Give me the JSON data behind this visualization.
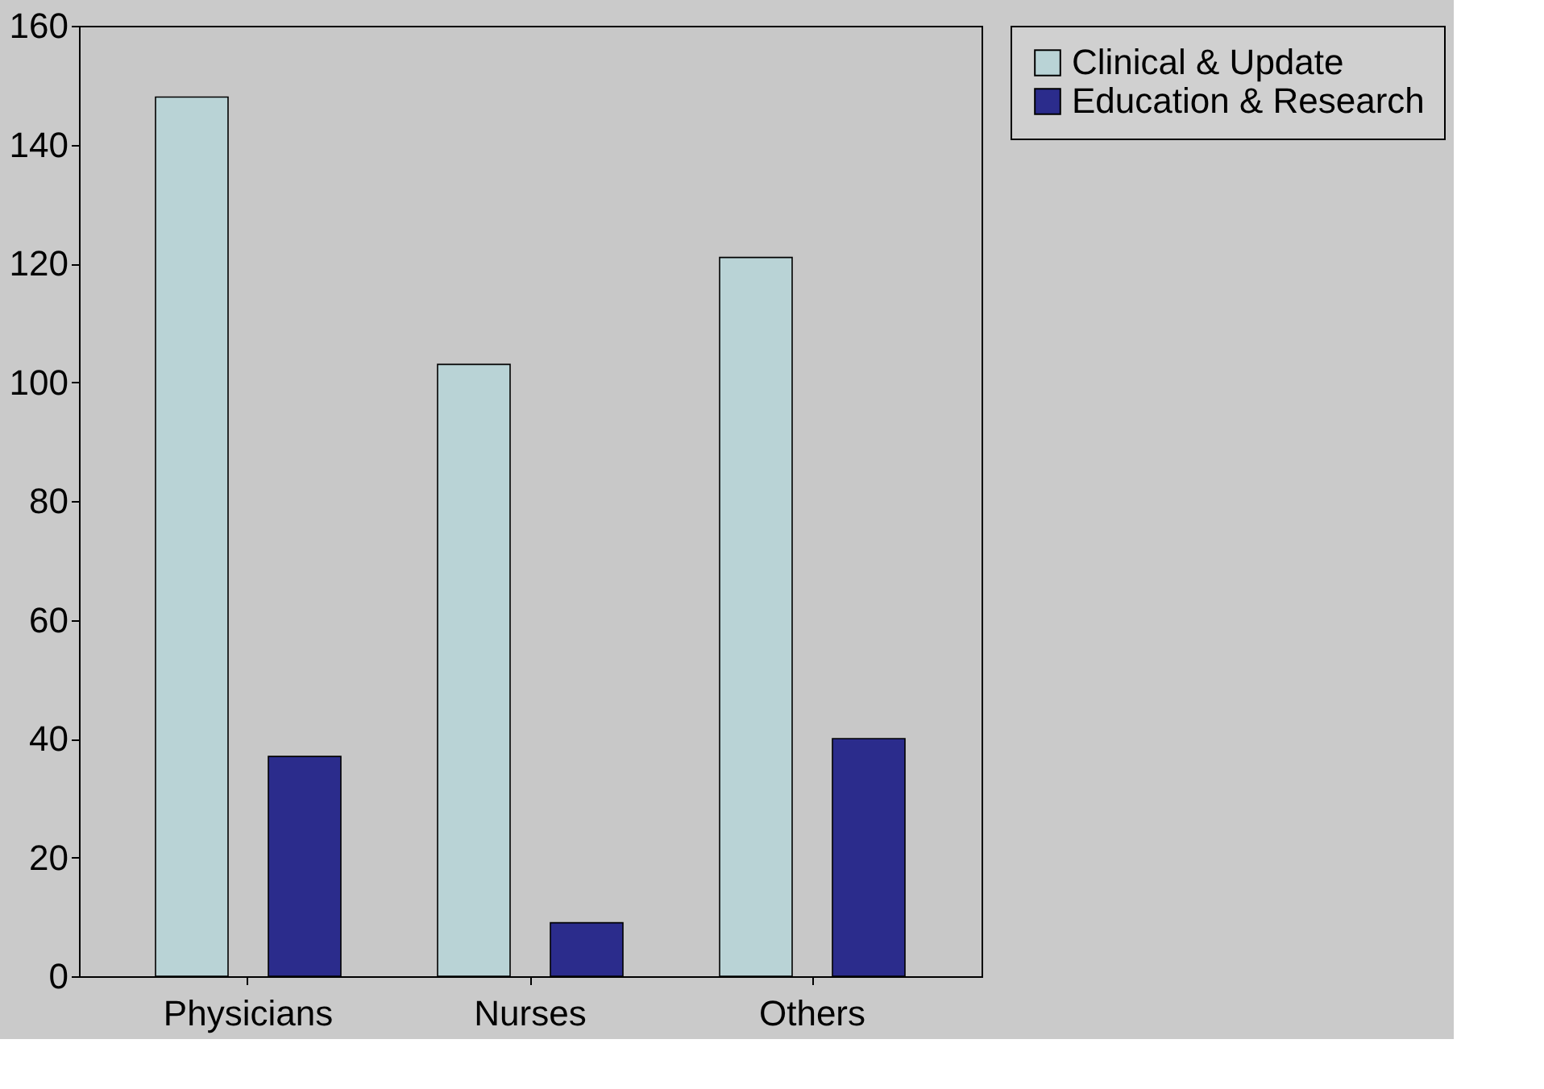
{
  "chart_data": {
    "type": "bar",
    "categories": [
      "Physicians",
      "Nurses",
      "Others"
    ],
    "series": [
      {
        "name": "Clinical & Update",
        "color": "#b9d3d6",
        "values": [
          148,
          103,
          121
        ]
      },
      {
        "name": "Education & Research",
        "color": "#2b2c8c",
        "values": [
          37,
          9,
          40
        ]
      }
    ],
    "ylim": [
      0,
      160
    ],
    "yticks": [
      0,
      20,
      40,
      60,
      80,
      100,
      120,
      140,
      160
    ],
    "grid": false,
    "legend": "right"
  }
}
